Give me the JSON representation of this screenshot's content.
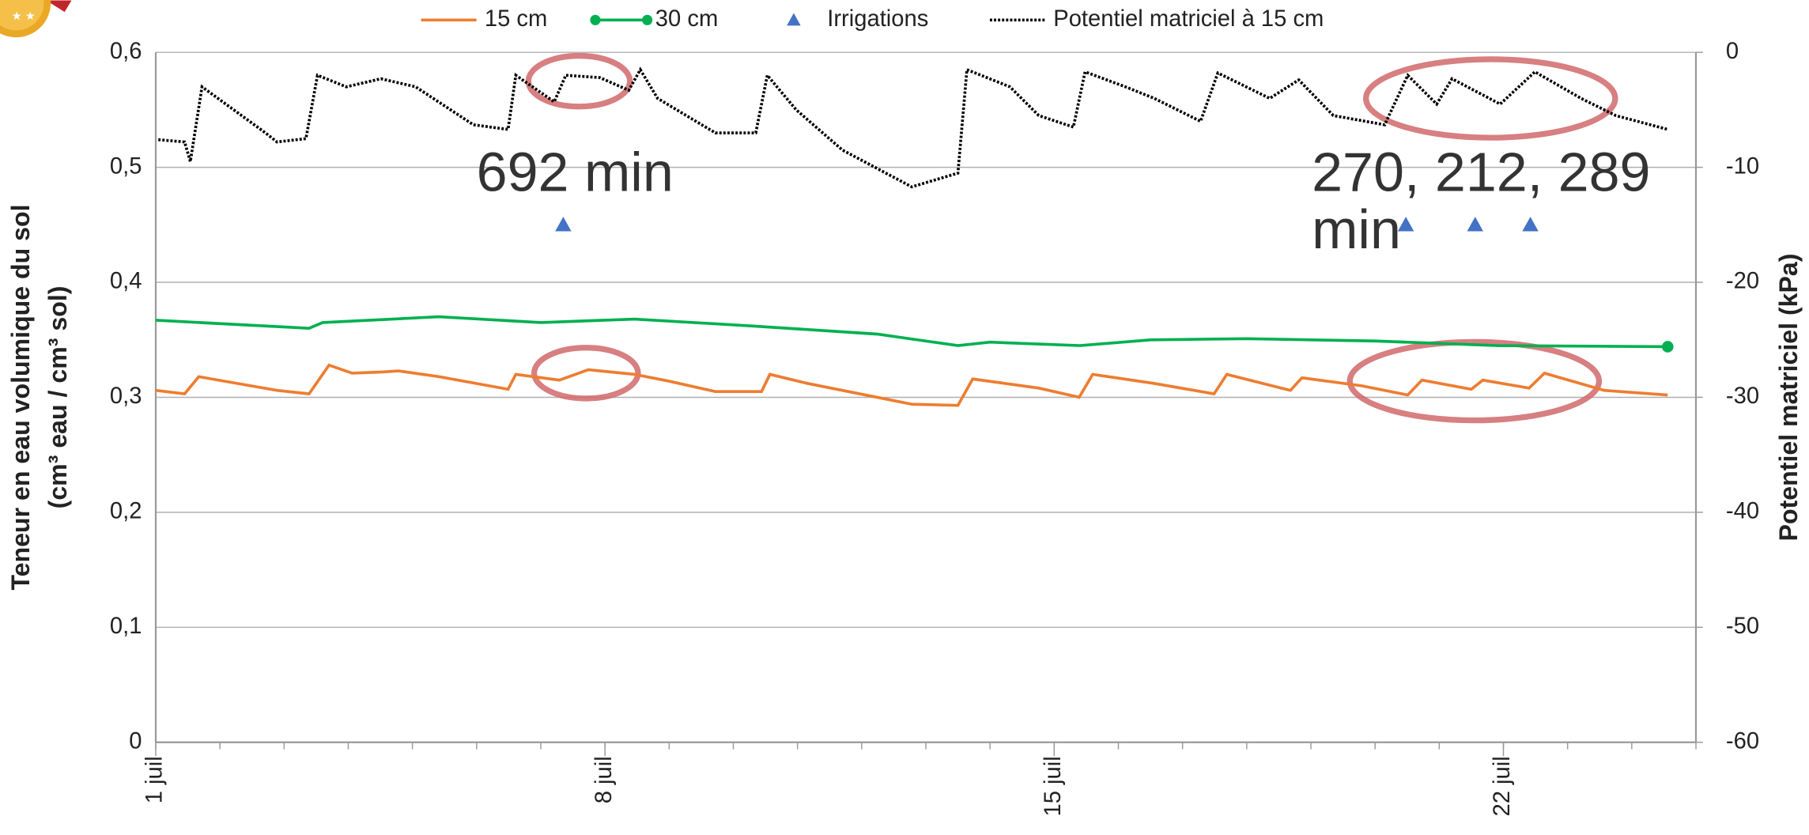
{
  "chart_data": {
    "type": "line",
    "ylabel": [
      "Teneur en eau volumique du sol",
      "(cm³ eau / cm³ sol)"
    ],
    "y2label": "Potentiel matriciel (kPa)",
    "xlim": [
      1,
      25
    ],
    "xticks": [
      {
        "value": 1,
        "label": "1 juil"
      },
      {
        "value": 8,
        "label": "8 juil"
      },
      {
        "value": 15,
        "label": "15 juil"
      },
      {
        "value": 22,
        "label": "22 juil"
      }
    ],
    "xminorticks": [
      1,
      2,
      3,
      4,
      5,
      6,
      7,
      8,
      9,
      10,
      11,
      12,
      13,
      14,
      15,
      16,
      17,
      18,
      19,
      20,
      21,
      22,
      23,
      24,
      25
    ],
    "ylim": [
      0,
      0.6
    ],
    "yticks": [
      0,
      {
        "value": 0.1,
        "label": "0,1"
      },
      {
        "value": 0.2,
        "label": "0,2"
      },
      {
        "value": 0.3,
        "label": "0,3"
      },
      {
        "value": 0.4,
        "label": "0,4"
      },
      {
        "value": 0.5,
        "label": "0,5"
      },
      {
        "value": 0.6,
        "label": "0,6"
      }
    ],
    "y2lim": [
      -60,
      0
    ],
    "y2ticks": [
      -60,
      -50,
      -40,
      -30,
      -20,
      -10,
      0
    ],
    "grid": true,
    "legend": "top",
    "series": [
      {
        "name": "15 cm",
        "color": "#ed7d31",
        "kind": "line",
        "x": [
          1.0,
          1.45,
          1.67,
          2.17,
          2.89,
          3.39,
          3.7,
          4.06,
          4.51,
          4.78,
          5.41,
          6.49,
          6.61,
          7.29,
          7.74,
          8.46,
          9.0,
          9.72,
          10.44,
          10.57,
          11.16,
          12.24,
          12.78,
          13.5,
          13.73,
          14.76,
          15.39,
          15.6,
          16.56,
          17.49,
          17.69,
          18.68,
          18.86,
          19.79,
          20.51,
          20.73,
          21.5,
          21.68,
          22.4,
          22.64,
          23.57,
          24.56
        ],
        "values": [
          0.306,
          0.303,
          0.318,
          0.313,
          0.306,
          0.303,
          0.328,
          0.321,
          0.322,
          0.323,
          0.318,
          0.307,
          0.32,
          0.315,
          0.324,
          0.32,
          0.314,
          0.305,
          0.305,
          0.32,
          0.312,
          0.3,
          0.294,
          0.293,
          0.316,
          0.308,
          0.3,
          0.32,
          0.312,
          0.303,
          0.32,
          0.306,
          0.317,
          0.31,
          0.302,
          0.315,
          0.307,
          0.315,
          0.308,
          0.321,
          0.306,
          0.302
        ]
      },
      {
        "name": "30 cm",
        "color": "#00b050",
        "kind": "line",
        "end_marker": true,
        "x": [
          1.0,
          3.39,
          3.6,
          5.41,
          7.0,
          8.46,
          10.3,
          12.24,
          13.5,
          14.0,
          15.4,
          16.5,
          18.0,
          20.0,
          21.9,
          24.56
        ],
        "values": [
          0.367,
          0.36,
          0.365,
          0.37,
          0.365,
          0.368,
          0.362,
          0.355,
          0.345,
          0.348,
          0.345,
          0.35,
          0.351,
          0.349,
          0.345,
          0.344
        ]
      },
      {
        "name": "Irrigations",
        "color": "#4472c4",
        "kind": "scatter",
        "x": [
          7.35,
          20.48,
          21.56,
          22.42
        ],
        "values": [
          0.45,
          0.45,
          0.45,
          0.45
        ]
      },
      {
        "name": "Potentiel matriciel à 15 cm",
        "color": "#000000",
        "kind": "line",
        "dash": true,
        "axis": "y2",
        "x": [
          1.04,
          1.45,
          1.54,
          1.72,
          2.71,
          2.89,
          3.34,
          3.52,
          3.97,
          4.51,
          5.05,
          5.95,
          6.49,
          6.61,
          7.21,
          7.39,
          7.92,
          8.37,
          8.55,
          8.82,
          9.72,
          10.35,
          10.53,
          10.98,
          11.7,
          12.78,
          13.5,
          13.64,
          14.31,
          14.76,
          15.3,
          15.48,
          16.11,
          16.56,
          17.28,
          17.55,
          18.36,
          18.81,
          19.35,
          20.15,
          20.51,
          20.96,
          21.2,
          21.95,
          22.49,
          23.21,
          23.75,
          24.56
        ],
        "values": [
          -7.6,
          -7.8,
          -9.5,
          -3.0,
          -7.0,
          -7.8,
          -7.5,
          -2.0,
          -3.0,
          -2.3,
          -3.0,
          -6.3,
          -6.7,
          -2.0,
          -4.3,
          -2.0,
          -2.2,
          -3.3,
          -1.5,
          -4.0,
          -7.0,
          -7.0,
          -2.0,
          -5.0,
          -8.5,
          -11.7,
          -10.5,
          -1.5,
          -3.0,
          -5.5,
          -6.5,
          -1.7,
          -3.0,
          -4.0,
          -6.0,
          -1.8,
          -4.0,
          -2.4,
          -5.5,
          -6.3,
          -2.0,
          -4.5,
          -2.3,
          -4.5,
          -1.7,
          -4.0,
          -5.5,
          -6.7
        ]
      }
    ],
    "annotations": [
      "692 min",
      "270, 212, 289 min"
    ]
  }
}
